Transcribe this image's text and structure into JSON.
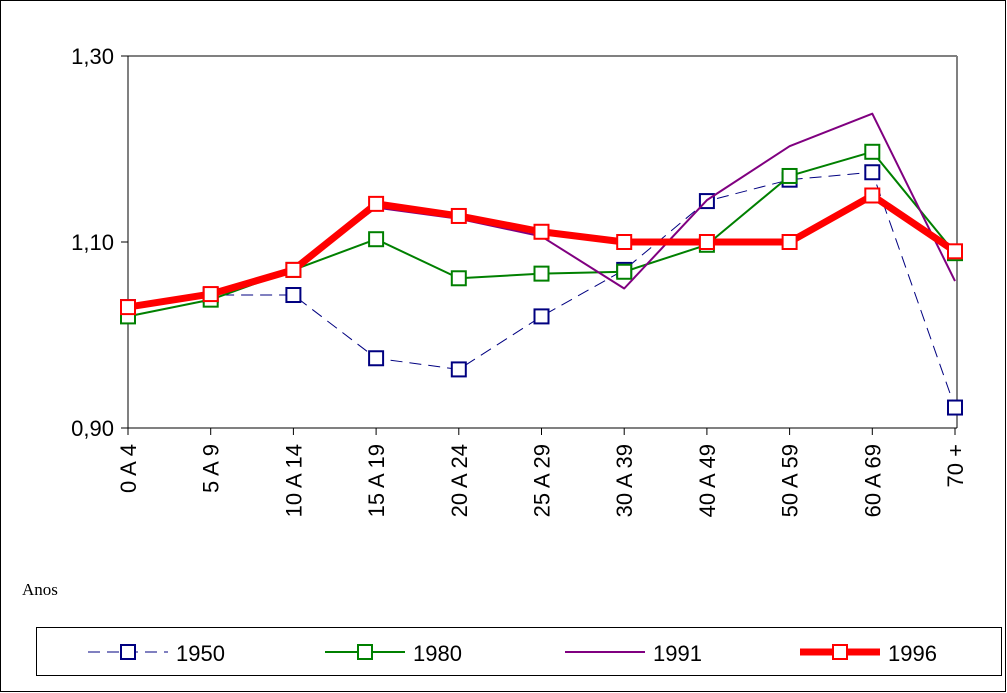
{
  "chart_data": {
    "type": "line",
    "x_label": "Anos",
    "categories": [
      "0 A 4",
      "5 A 9",
      "10 A 14",
      "15 A 19",
      "20 A 24",
      "25 A 29",
      "30 A 39",
      "40 A 49",
      "50 A 59",
      "60 A 69",
      "70 +"
    ],
    "ylim": [
      0.9,
      1.3
    ],
    "yticks": [
      {
        "value": 0.9,
        "label": "0,90"
      },
      {
        "value": 1.1,
        "label": "1,10"
      },
      {
        "value": 1.3,
        "label": "1,30"
      }
    ],
    "grid": false,
    "legend": "bottom",
    "series": [
      {
        "name": "1950",
        "color": "#000080",
        "dashed": true,
        "marker": true,
        "width": 1,
        "values": [
          1.03,
          1.043,
          1.043,
          0.975,
          0.963,
          1.02,
          1.07,
          1.144,
          1.167,
          1.175,
          0.922
        ]
      },
      {
        "name": "1980",
        "color": "#008000",
        "dashed": false,
        "marker": true,
        "width": 2,
        "values": [
          1.02,
          1.038,
          1.07,
          1.103,
          1.061,
          1.066,
          1.068,
          1.097,
          1.171,
          1.197,
          1.088
        ]
      },
      {
        "name": "1991",
        "color": "#800080",
        "dashed": false,
        "marker": false,
        "width": 2,
        "values": [
          1.03,
          1.043,
          1.07,
          1.137,
          1.125,
          1.106,
          1.05,
          1.145,
          1.203,
          1.238,
          1.058
        ]
      },
      {
        "name": "1996",
        "color": "#ff0000",
        "dashed": false,
        "marker": true,
        "width": 7,
        "values": [
          1.03,
          1.044,
          1.07,
          1.141,
          1.128,
          1.111,
          1.1,
          1.1,
          1.1,
          1.15,
          1.09
        ]
      }
    ]
  }
}
